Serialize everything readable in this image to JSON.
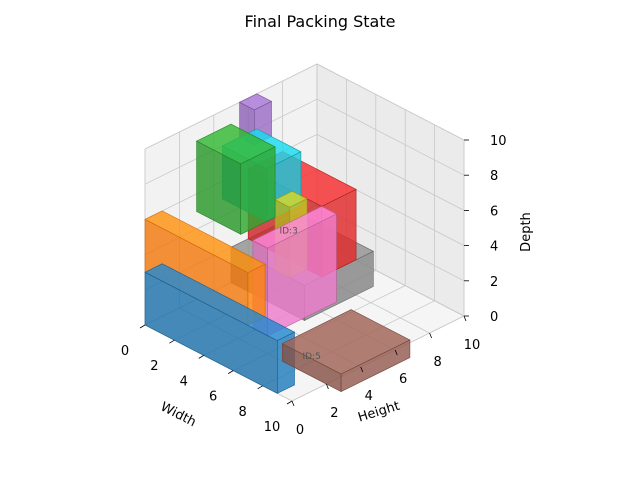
{
  "chart_data": {
    "type": "3d-box-packing",
    "title": "Final Packing State",
    "xlabel": "Width",
    "ylabel": "Height",
    "zlabel": "Depth",
    "xlim": [
      0,
      10
    ],
    "ylim": [
      0,
      10
    ],
    "zlim": [
      0,
      10
    ],
    "xticks": [
      0,
      2,
      4,
      6,
      8,
      10
    ],
    "yticks": [
      0,
      2,
      4,
      6,
      8,
      10
    ],
    "zticks": [
      0,
      2,
      4,
      6,
      8,
      10
    ],
    "grid": true,
    "box_labels": [
      "ID:3",
      "ID:5"
    ],
    "boxes": [
      {
        "color": "#1f77b4",
        "origin": [
          0,
          0,
          0
        ],
        "size": [
          9,
          1,
          3
        ]
      },
      {
        "color": "#ff7f0e",
        "origin": [
          0,
          0,
          3
        ],
        "size": [
          7,
          1,
          3
        ]
      },
      {
        "color": "#2ca02c",
        "origin": [
          0,
          3,
          5
        ],
        "size": [
          3,
          2,
          4
        ]
      },
      {
        "color": "#d62728",
        "origin": [
          0,
          6,
          2
        ],
        "size": [
          5,
          2,
          4
        ]
      },
      {
        "color": "#9467bd",
        "origin": [
          0,
          5.5,
          8
        ],
        "size": [
          1,
          1,
          2
        ]
      },
      {
        "color": "#8c564b",
        "origin": [
          7,
          2,
          0
        ],
        "size": [
          4,
          4,
          1
        ]
      },
      {
        "color": "#e377c2",
        "origin": [
          5,
          2,
          1
        ],
        "size": [
          1,
          4,
          5
        ]
      },
      {
        "color": "#7f7f7f",
        "origin": [
          0,
          5,
          0
        ],
        "size": [
          5,
          4,
          2
        ]
      },
      {
        "color": "#bcbd22",
        "origin": [
          3,
          5,
          2
        ],
        "size": [
          1,
          1,
          4
        ]
      },
      {
        "color": "#17becf",
        "origin": [
          0,
          4.5,
          5
        ],
        "size": [
          3,
          2,
          3
        ]
      }
    ]
  }
}
